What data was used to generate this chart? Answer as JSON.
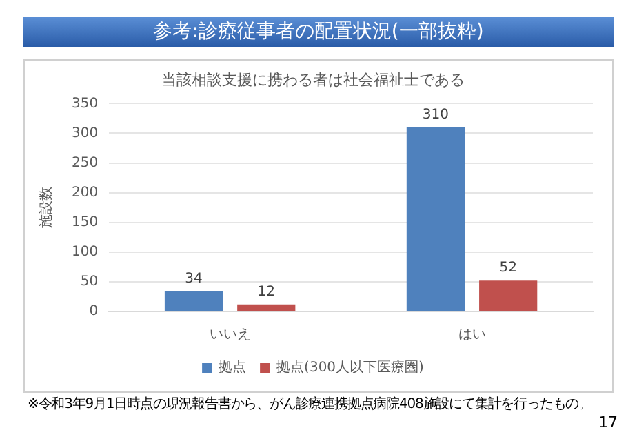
{
  "chart_data": {
    "type": "bar",
    "title": "参考:診療従事者の配置状況(一部抜粋)",
    "subtitle": "当該相談支援に携わる者は社会福祉士である",
    "ylabel": "施設数",
    "categories": [
      "いいえ",
      "はい"
    ],
    "series": [
      {
        "name": "拠点",
        "color": "#4f81bd",
        "values": [
          34,
          310
        ]
      },
      {
        "name": "拠点(300人以下医療圏)",
        "color": "#c0504d",
        "values": [
          12,
          52
        ]
      }
    ],
    "ylim": [
      0,
      350
    ],
    "yticks": [
      0,
      50,
      100,
      150,
      200,
      250,
      300,
      350
    ],
    "grid": "y",
    "legend": "bottom",
    "data_labels": true,
    "annotations": [
      "※令和3年9月1日時点の現況報告書から、がん診療連携拠点病院408施設にて集計を行ったもの。",
      "17"
    ]
  }
}
